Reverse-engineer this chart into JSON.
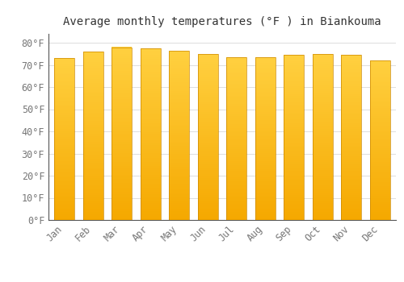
{
  "title": "Average monthly temperatures (°F ) in Biankouma",
  "months": [
    "Jan",
    "Feb",
    "Mar",
    "Apr",
    "May",
    "Jun",
    "Jul",
    "Aug",
    "Sep",
    "Oct",
    "Nov",
    "Dec"
  ],
  "values": [
    73.0,
    76.0,
    78.0,
    77.5,
    76.5,
    75.0,
    73.5,
    73.5,
    74.5,
    75.0,
    74.5,
    72.0
  ],
  "bar_color_bottom": "#F5A800",
  "bar_color_top": "#FFD040",
  "bar_edge_color": "#CC8800",
  "background_color": "#FFFFFF",
  "plot_bg_color": "#F8F8F8",
  "grid_color": "#DDDDDD",
  "ytick_labels": [
    "0°F",
    "10°F",
    "20°F",
    "30°F",
    "40°F",
    "50°F",
    "60°F",
    "70°F",
    "80°F"
  ],
  "ytick_values": [
    0,
    10,
    20,
    30,
    40,
    50,
    60,
    70,
    80
  ],
  "ylim": [
    0,
    84
  ],
  "bar_width": 0.7,
  "title_fontsize": 10,
  "tick_fontsize": 8.5
}
